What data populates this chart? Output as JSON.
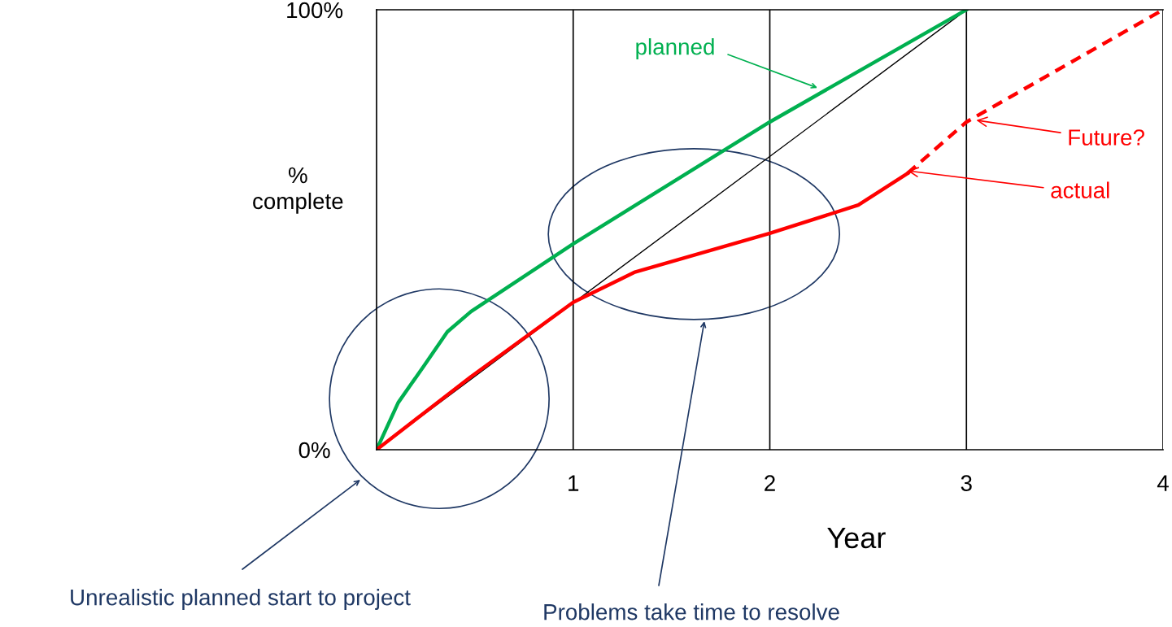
{
  "chart_data": {
    "type": "line",
    "xlabel": "Year",
    "ylabel": "%\ncomplete",
    "xlim": [
      0,
      4
    ],
    "ylim": [
      0,
      100
    ],
    "xticks": [
      1,
      2,
      3,
      4
    ],
    "yticks": [
      {
        "value": 0,
        "label": "0%"
      },
      {
        "value": 100,
        "label": "100%"
      }
    ],
    "grid": "x",
    "legend": false,
    "marker": "none",
    "series": [
      {
        "color": "#000000",
        "x": [
          0,
          3
        ],
        "values": [
          0,
          100
        ],
        "line_style": "solid"
      },
      {
        "color": "#00b050",
        "x": [
          0,
          0.11,
          0.24,
          0.36,
          0.48,
          1.0,
          2.0,
          3.0
        ],
        "values": [
          0,
          10.7,
          19,
          26.8,
          31.4,
          46.8,
          74.5,
          100
        ],
        "line_style": "solid"
      },
      {
        "color": "#ff0000",
        "x": [
          0,
          0.48,
          1.0,
          1.31,
          2.0,
          2.45,
          2.7
        ],
        "values": [
          0,
          16.6,
          33.5,
          40.3,
          49.2,
          55.6,
          62.8
        ],
        "line_style": "solid"
      },
      {
        "color": "#ff0000",
        "x": [
          2.7,
          3.0,
          4.0
        ],
        "values": [
          62.8,
          74.5,
          100
        ],
        "line_style": "dashed"
      }
    ],
    "annotations": [
      "planned",
      {
        "text": "Future?",
        "x": 3.05,
        "y": 74.9
      },
      {
        "text": "actual",
        "x": 2.7,
        "y": 63.4
      },
      "Unrealistic planned start to project",
      "Problems take time to resolve"
    ]
  }
}
